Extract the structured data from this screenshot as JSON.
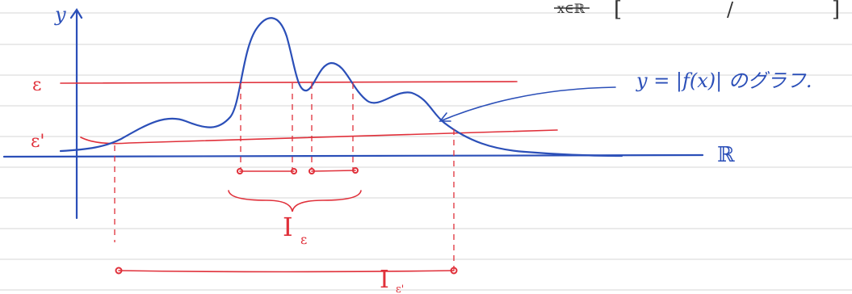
{
  "top_note": {
    "struck": "x∈ℝ",
    "bracket_open": "[",
    "slash": "/",
    "bracket_close": "]"
  },
  "axes": {
    "y_label": "y",
    "x_label": "ℝ"
  },
  "levels": {
    "epsilon": "ε",
    "epsilon_prime": "ε'"
  },
  "curve_note": "y = |f(x)| のグラフ.",
  "intervals": {
    "i_eps": {
      "main": "I",
      "sub": "ε"
    },
    "i_eps_prime": {
      "main": "I",
      "sub": "ε'"
    }
  }
}
